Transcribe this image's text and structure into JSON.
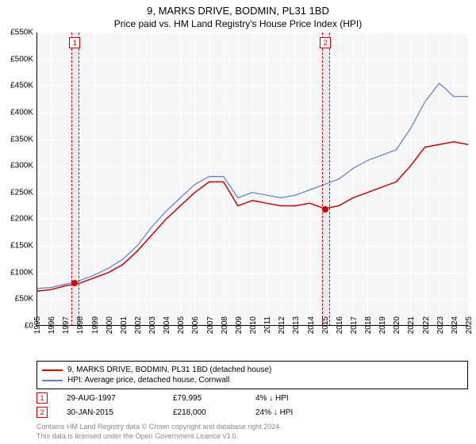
{
  "title": "9, MARKS DRIVE, BODMIN, PL31 1BD",
  "subtitle": "Price paid vs. HM Land Registry's House Price Index (HPI)",
  "chart": {
    "type": "line",
    "background_color": "#f5f6f8",
    "grid_color": "#ffffff",
    "ylim": [
      0,
      550000
    ],
    "ytick_step": 50000,
    "ytick_labels": [
      "£0",
      "£50K",
      "£100K",
      "£150K",
      "£200K",
      "£250K",
      "£300K",
      "£350K",
      "£400K",
      "£450K",
      "£500K",
      "£550K"
    ],
    "xlim": [
      1995,
      2025
    ],
    "xtick_step": 1,
    "years": [
      1995,
      1996,
      1997,
      1998,
      1999,
      2000,
      2001,
      2002,
      2003,
      2004,
      2005,
      2006,
      2007,
      2008,
      2009,
      2010,
      2011,
      2012,
      2013,
      2014,
      2015,
      2016,
      2017,
      2018,
      2019,
      2020,
      2021,
      2022,
      2023,
      2024,
      2025
    ],
    "series": [
      {
        "name": "property",
        "color": "#cc0000",
        "line_width": 1.5,
        "data": [
          65,
          68,
          75,
          80,
          90,
          100,
          115,
          140,
          170,
          200,
          225,
          250,
          270,
          270,
          225,
          235,
          230,
          225,
          225,
          230,
          220,
          225,
          240,
          250,
          260,
          270,
          300,
          335,
          340,
          345,
          340
        ]
      },
      {
        "name": "hpi",
        "color": "#5a7fc4",
        "line_width": 1.2,
        "data": [
          70,
          72,
          78,
          85,
          95,
          108,
          125,
          150,
          185,
          215,
          240,
          265,
          280,
          280,
          240,
          250,
          245,
          240,
          245,
          255,
          265,
          275,
          295,
          310,
          320,
          330,
          370,
          420,
          455,
          430,
          430
        ]
      }
    ],
    "sale_markers": [
      {
        "num": "1",
        "year": 1997.66,
        "price": 79995,
        "color": "#cc0000"
      },
      {
        "num": "2",
        "year": 2015.08,
        "price": 218000,
        "color": "#cc0000"
      }
    ]
  },
  "legend": {
    "items": [
      {
        "color": "#cc0000",
        "label": "9, MARKS DRIVE, BODMIN, PL31 1BD (detached house)"
      },
      {
        "color": "#5a7fc4",
        "label": "HPI: Average price, detached house, Cornwall"
      }
    ]
  },
  "sales": [
    {
      "num": "1",
      "date": "29-AUG-1997",
      "price": "£79,995",
      "delta": "4% ↓ HPI"
    },
    {
      "num": "2",
      "date": "30-JAN-2015",
      "price": "£218,000",
      "delta": "24% ↓ HPI"
    }
  ],
  "footer": {
    "line1": "Contains HM Land Registry data © Crown copyright and database right 2024.",
    "line2": "This data is licensed under the Open Government Licence v3.0."
  }
}
